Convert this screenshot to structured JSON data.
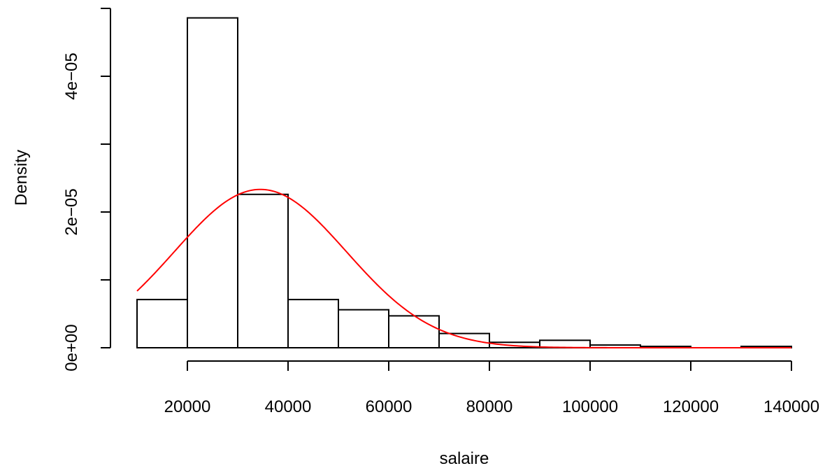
{
  "chart_data": {
    "type": "bar",
    "title": "",
    "xlabel": "salaire",
    "ylabel": "Density",
    "bins": [
      {
        "from": 10000,
        "to": 20000,
        "density": 7.1e-06
      },
      {
        "from": 20000,
        "to": 30000,
        "density": 4.86e-05
      },
      {
        "from": 30000,
        "to": 40000,
        "density": 2.26e-05
      },
      {
        "from": 40000,
        "to": 50000,
        "density": 7.1e-06
      },
      {
        "from": 50000,
        "to": 60000,
        "density": 5.6e-06
      },
      {
        "from": 60000,
        "to": 70000,
        "density": 4.7e-06
      },
      {
        "from": 70000,
        "to": 80000,
        "density": 2.1e-06
      },
      {
        "from": 80000,
        "to": 90000,
        "density": 8e-07
      },
      {
        "from": 90000,
        "to": 100000,
        "density": 1.1e-06
      },
      {
        "from": 100000,
        "to": 110000,
        "density": 4e-07
      },
      {
        "from": 110000,
        "to": 120000,
        "density": 2e-07
      },
      {
        "from": 120000,
        "to": 130000,
        "density": 0.0
      },
      {
        "from": 130000,
        "to": 140000,
        "density": 2e-07
      }
    ],
    "density_curve": {
      "type": "line",
      "color": "#ff0000",
      "mean": 34500,
      "sd": 17100,
      "x_from": 10000,
      "x_to": 140000
    },
    "xlim": [
      10000,
      140000
    ],
    "ylim": [
      0,
      5e-05
    ],
    "x_ticks": [
      "20000",
      "40000",
      "60000",
      "80000",
      "100000",
      "120000",
      "140000"
    ],
    "x_tick_values": [
      20000,
      40000,
      60000,
      80000,
      100000,
      120000,
      140000
    ],
    "y_ticks": [
      "0e+00",
      "2e−05",
      "4e−05"
    ],
    "y_tick_values": [
      0,
      2e-05,
      4e-05
    ],
    "y_minor_tick_values": [
      1e-05,
      3e-05,
      5e-05
    ],
    "grid": false,
    "bar_fill": "#ffffff",
    "bar_stroke": "#000000"
  }
}
